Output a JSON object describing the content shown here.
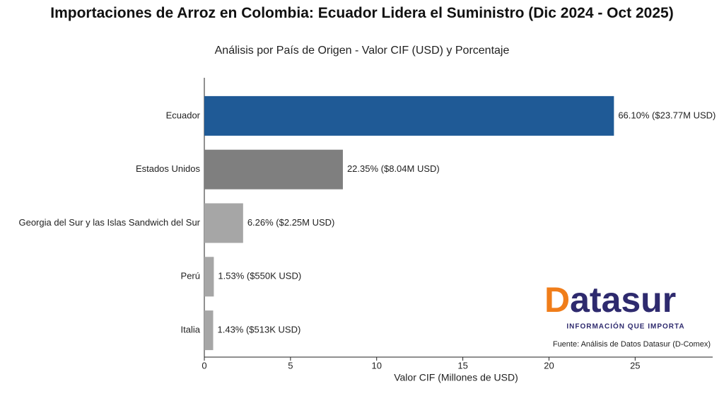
{
  "chart_data": {
    "type": "bar",
    "orientation": "horizontal",
    "title": "Importaciones de Arroz en Colombia: Ecuador Lidera el Suministro (Dic 2024 - Oct 2025)",
    "subtitle": "Análisis por País de Origen - Valor CIF (USD) y Porcentaje",
    "xlabel": "Valor CIF (Millones de USD)",
    "categories": [
      "Ecuador",
      "Estados Unidos",
      "Georgia del Sur y las Islas Sandwich del Sur",
      "Perú",
      "Italia"
    ],
    "values": [
      23.77,
      8.04,
      2.25,
      0.55,
      0.513
    ],
    "value_labels": [
      "66.10% ($23.77M USD)",
      "22.35% ($8.04M USD)",
      "6.26% ($2.25M USD)",
      "1.53% ($550K USD)",
      "1.43% ($513K USD)"
    ],
    "colors": [
      "#1f5a96",
      "#7f7f7f",
      "#a6a6a6",
      "#a6a6a6",
      "#a6a6a6"
    ],
    "xlim": [
      0,
      29.5
    ],
    "xticks": [
      0,
      5,
      10,
      15,
      20,
      25
    ],
    "source": "Fuente: Análisis de Datos Datasur (D-Comex)"
  },
  "logo": {
    "name": "Datasur",
    "tagline": "INFORMACIÓN QUE IMPORTA"
  }
}
